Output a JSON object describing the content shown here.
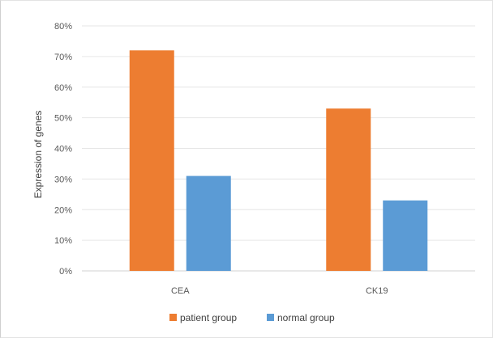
{
  "chart_data": {
    "type": "bar",
    "title": "",
    "xlabel": "",
    "ylabel": "Expression of genes",
    "categories": [
      "CEA",
      "CK19"
    ],
    "series": [
      {
        "name": "patient group",
        "values": [
          72,
          53
        ],
        "color": "#ED7D31"
      },
      {
        "name": "normal group",
        "values": [
          31,
          23
        ],
        "color": "#5B9BD5"
      }
    ],
    "ylim": [
      0,
      80
    ],
    "yticks": [
      0,
      10,
      20,
      30,
      40,
      50,
      60,
      70,
      80
    ],
    "ytick_labels": [
      "0%",
      "10%",
      "20%",
      "30%",
      "40%",
      "50%",
      "60%",
      "70%",
      "80%"
    ],
    "grid": true,
    "legend_position": "bottom"
  }
}
